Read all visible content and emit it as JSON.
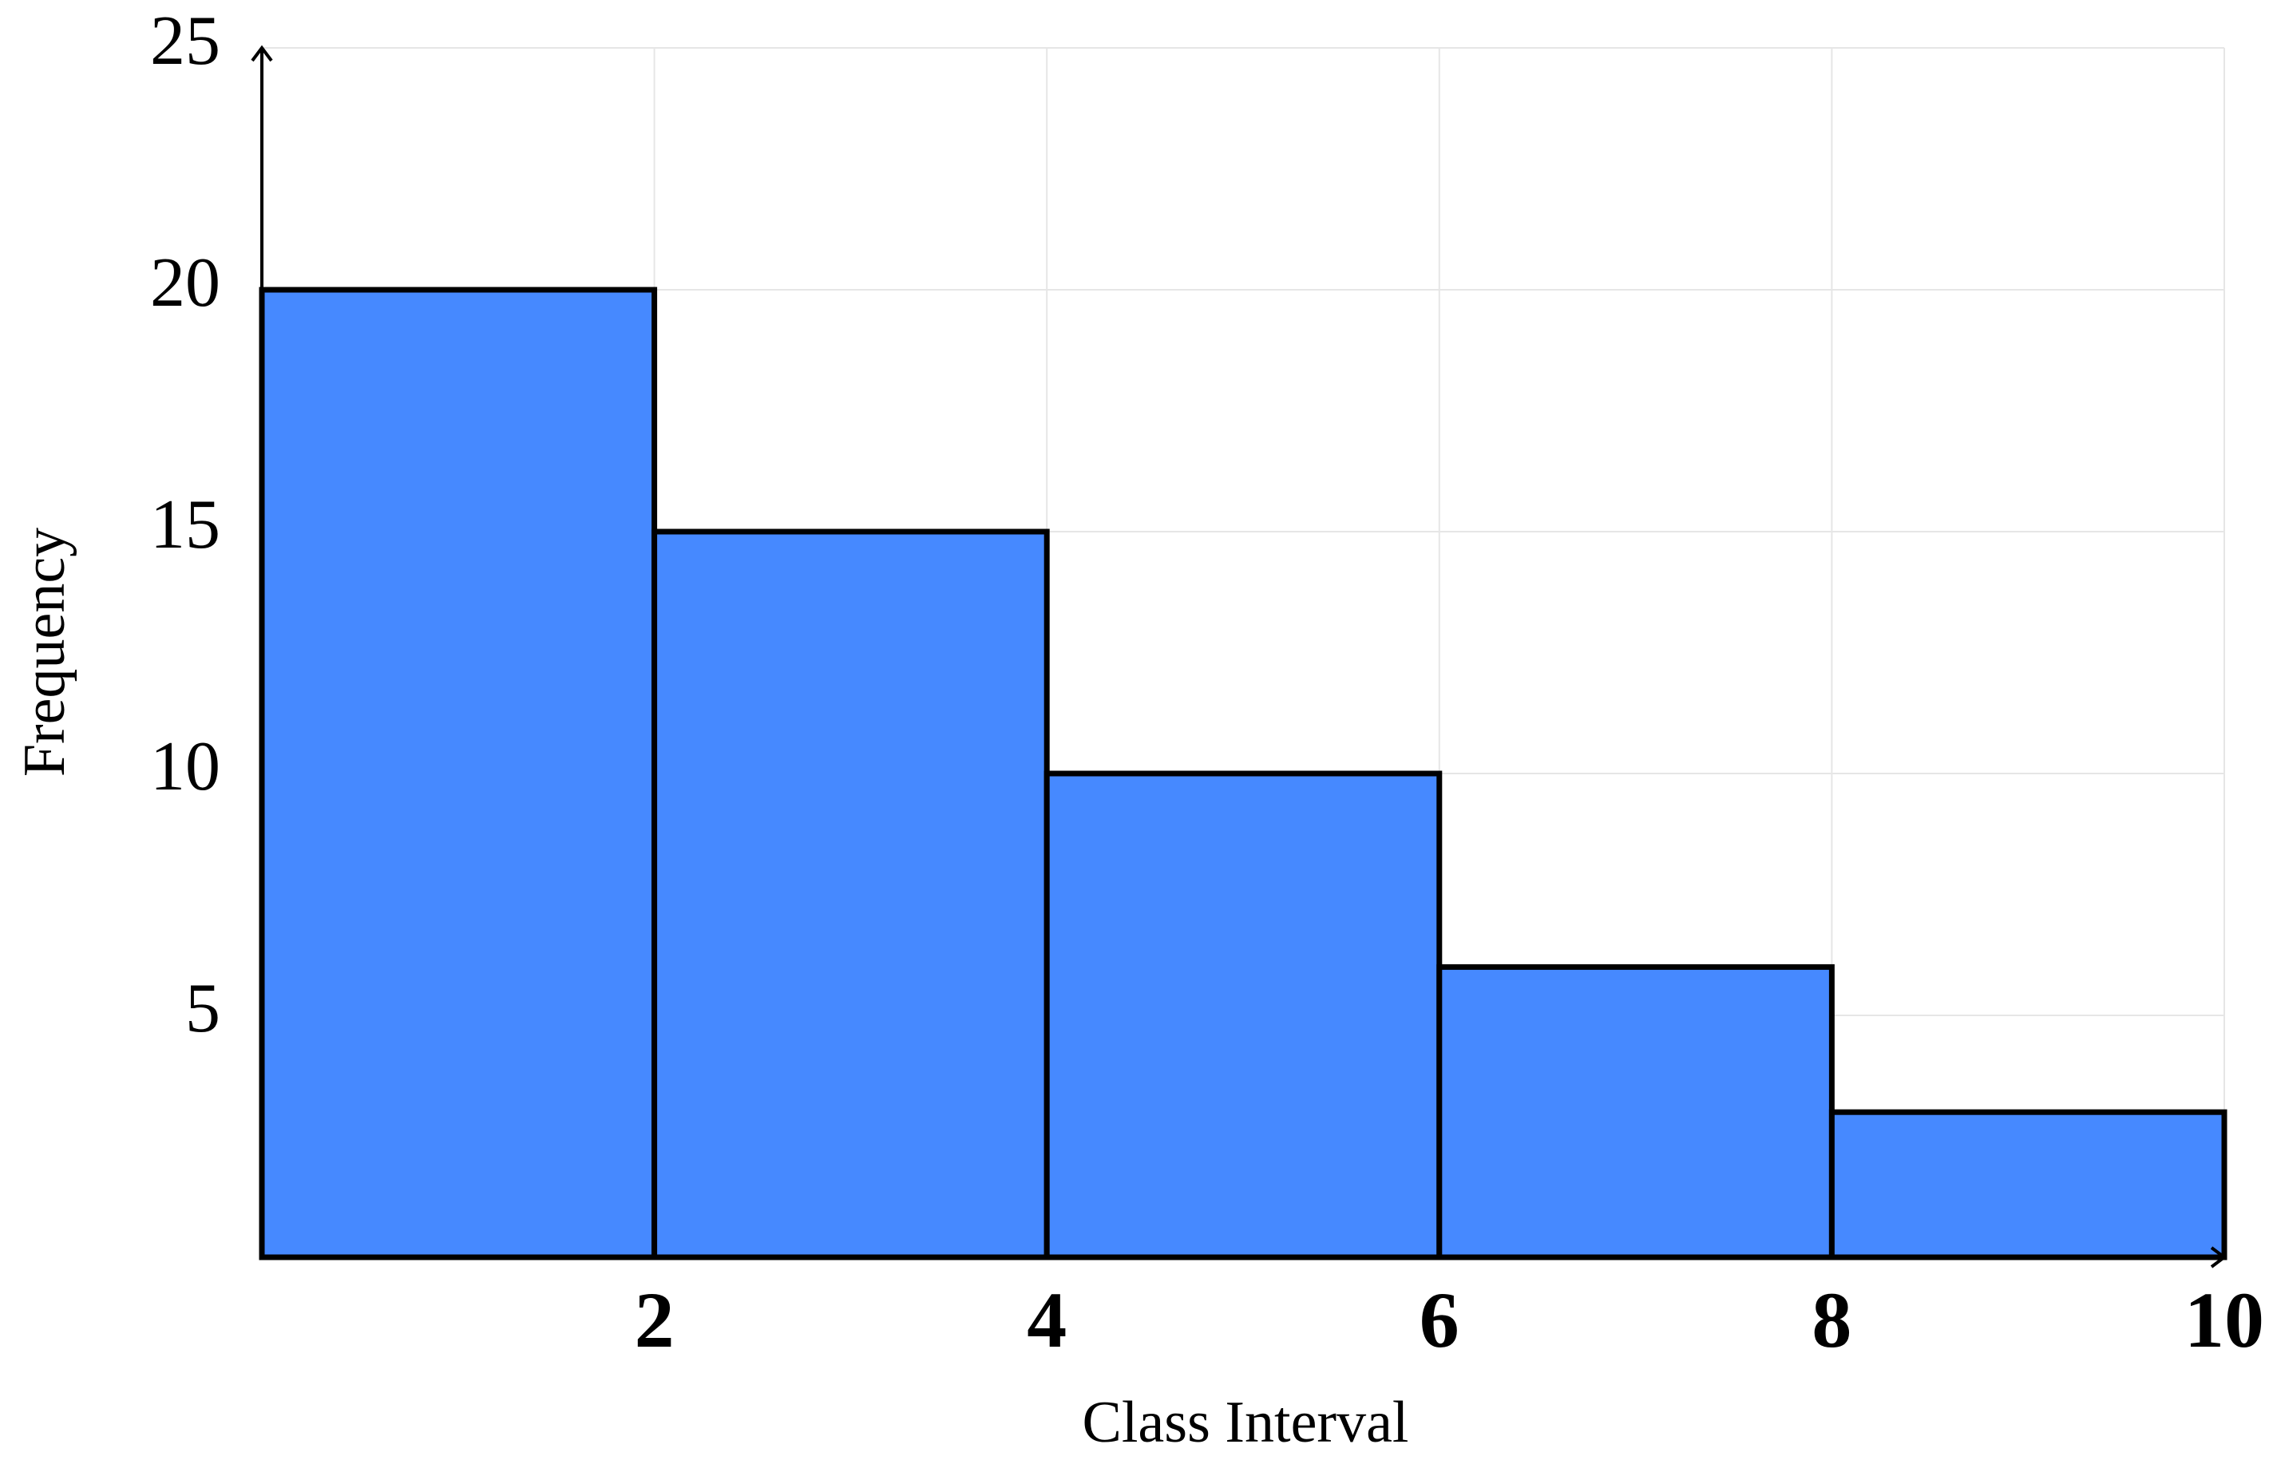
{
  "chart_data": {
    "type": "histogram",
    "x_label": "Class Interval",
    "y_label": "Frequency",
    "bins": [
      0,
      2,
      4,
      6,
      8,
      10
    ],
    "values": [
      20,
      15,
      10,
      6,
      3
    ],
    "color": "#4689ff",
    "xlim": [
      0,
      10
    ],
    "ylim": [
      0,
      25
    ],
    "xticks": [
      2,
      4,
      6,
      8,
      10
    ],
    "yticks": [
      5,
      10,
      15,
      20,
      25
    ],
    "grid": true
  }
}
